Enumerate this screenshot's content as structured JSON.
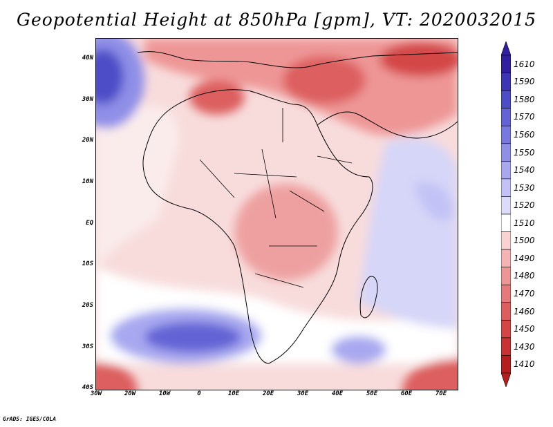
{
  "title": "Geopotential Height at 850hPa [gpm], VT: 2020032015",
  "credit": "GrADS: IGES/COLA",
  "lat_labels": [
    "40N",
    "30N",
    "20N",
    "10N",
    "EQ",
    "10S",
    "20S",
    "30S",
    "40S"
  ],
  "lon_labels": [
    "30W",
    "20W",
    "10W",
    "0",
    "10E",
    "20E",
    "30E",
    "40E",
    "50E",
    "60E",
    "70E"
  ],
  "colorbar": {
    "levels": [
      "1610",
      "1590",
      "1580",
      "1570",
      "1560",
      "1550",
      "1540",
      "1530",
      "1520",
      "1510",
      "1500",
      "1490",
      "1480",
      "1470",
      "1460",
      "1450",
      "1430",
      "1410"
    ],
    "colors": [
      "#3020a0",
      "#3c36b4",
      "#4d4dc8",
      "#6363d6",
      "#7878e0",
      "#8f8fe8",
      "#a8a8f0",
      "#c2c2f6",
      "#dcdcfa",
      "#ffffff",
      "#fad2d2",
      "#f4b4b4",
      "#ee9696",
      "#e67a7a",
      "#dd5e5e",
      "#d44646",
      "#c83232",
      "#b41e1e"
    ]
  }
}
